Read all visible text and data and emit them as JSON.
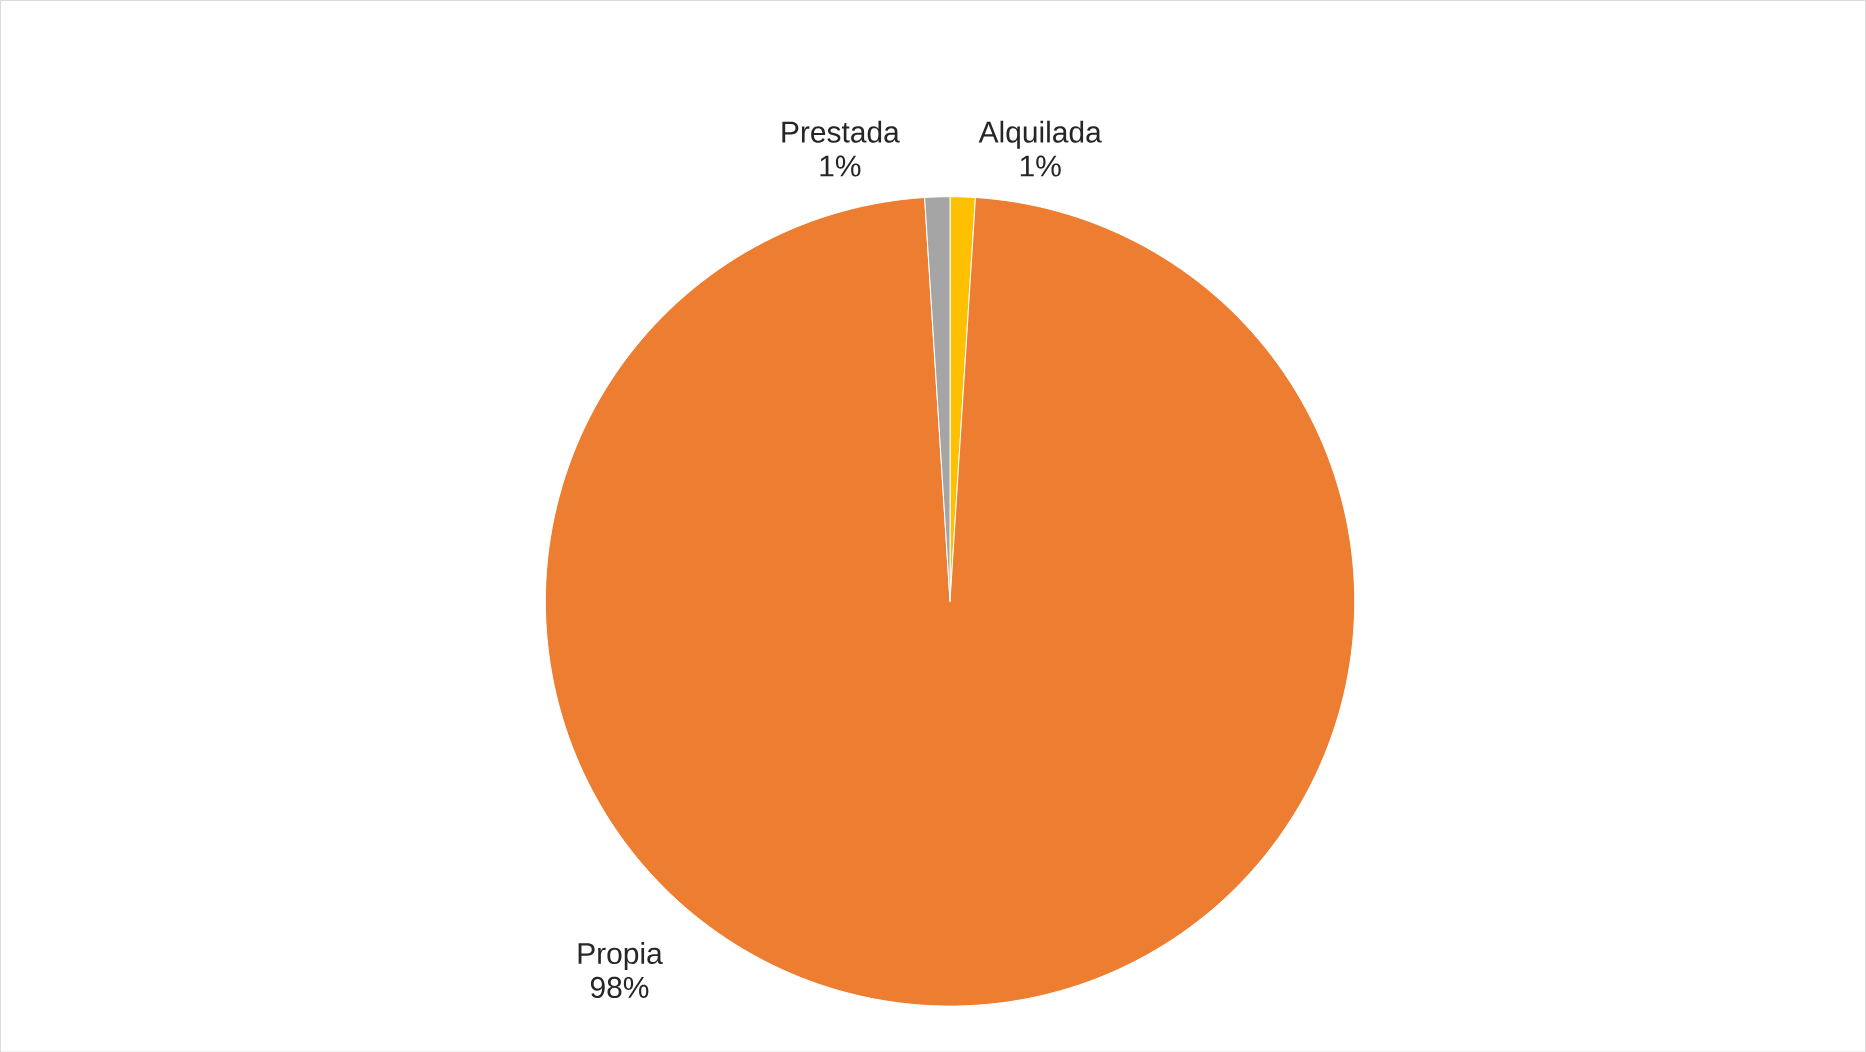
{
  "chart_data": {
    "type": "pie",
    "categories": [
      "Alquilada",
      "Propia",
      "Prestada"
    ],
    "values": [
      1,
      98,
      1
    ],
    "value_labels": [
      "1%",
      "98%",
      "1%"
    ],
    "colors": [
      "#ffc000",
      "#ed7d31",
      "#a5a5a5"
    ]
  }
}
